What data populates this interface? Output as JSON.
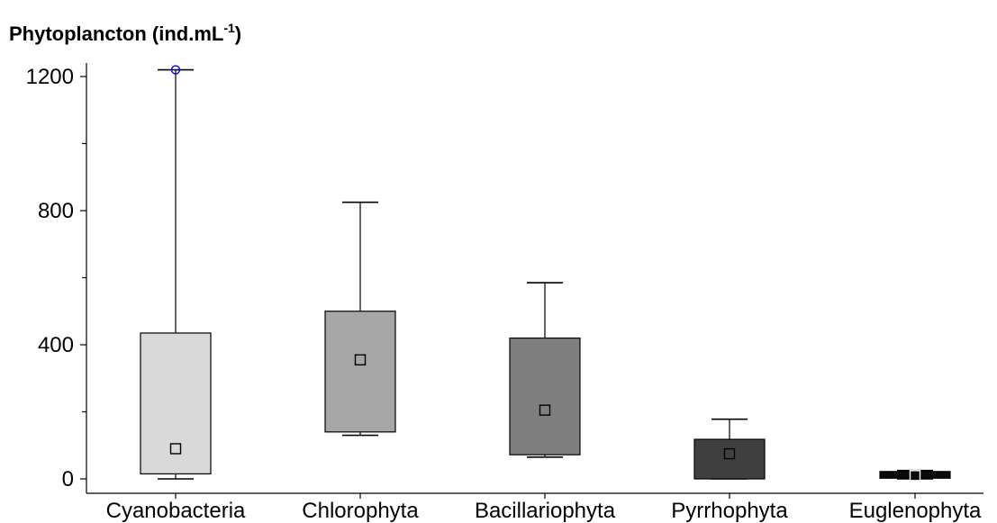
{
  "chart_data": {
    "type": "boxplot",
    "title_main": "Phytoplancton (ind.mL",
    "title_sup": "-1",
    "title_close": ")",
    "xlabel": "",
    "ylabel": "",
    "ylim": [
      0,
      1200
    ],
    "yticks": [
      0,
      400,
      800,
      1200
    ],
    "yticks_minor": [
      200,
      600,
      1000
    ],
    "grid": false,
    "legend": "none",
    "categories": [
      "Cyanobacteria",
      "Chlorophyta",
      "Bacillariophyta",
      "Pyrrhophyta",
      "Euglenophyta"
    ],
    "boxes": [
      {
        "category": "Cyanobacteria",
        "whisker_low": 0,
        "q1": 15,
        "median": 90,
        "q3": 435,
        "whisker_high": 1220,
        "color": "#d9d9d9",
        "outliers": [
          1220
        ]
      },
      {
        "category": "Chlorophyta",
        "whisker_low": 130,
        "q1": 140,
        "median": 355,
        "q3": 500,
        "whisker_high": 825,
        "color": "#a6a6a6",
        "outliers": []
      },
      {
        "category": "Bacillariophyta",
        "whisker_low": 65,
        "q1": 72,
        "median": 205,
        "q3": 420,
        "whisker_high": 585,
        "color": "#7f7f7f",
        "outliers": []
      },
      {
        "category": "Pyrrhophyta",
        "whisker_low": 0,
        "q1": 0,
        "median": 75,
        "q3": 118,
        "whisker_high": 178,
        "color": "#404040",
        "outliers": []
      },
      {
        "category": "Euglenophyta",
        "whisker_low": 0,
        "q1": 2,
        "median": 10,
        "q3": 22,
        "whisker_high": 25,
        "color": "#0a0a0a",
        "outliers": []
      }
    ],
    "outlier_color": "#0000ff"
  }
}
